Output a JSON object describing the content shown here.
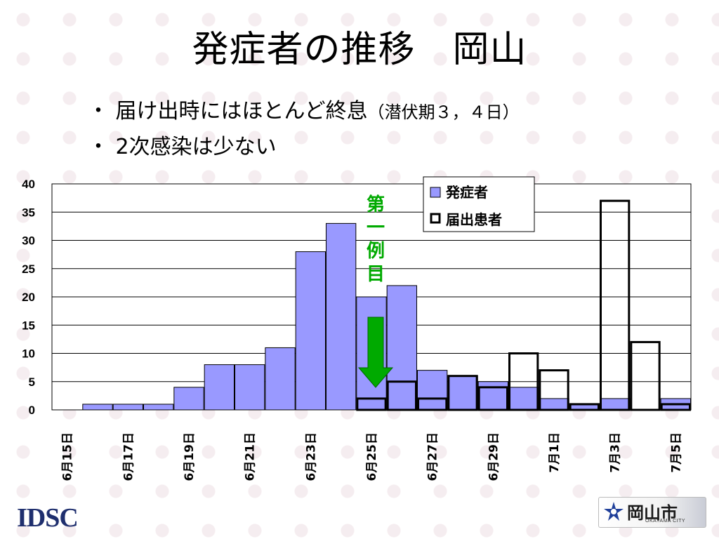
{
  "slide": {
    "title": "発症者の推移　岡山",
    "bullet1_main": "・ 届け出時にはほとんど終息",
    "bullet1_paren": "（潜伏期３，４日）",
    "bullet2": "・ 2次感染は少ない"
  },
  "logos": {
    "left": "IDSC",
    "right_name": "岡山市",
    "right_sub": "OKAYAMA CITY"
  },
  "chart_data": {
    "type": "bar",
    "ylim": [
      0,
      40
    ],
    "yticks": [
      0,
      5,
      10,
      15,
      20,
      25,
      30,
      35,
      40
    ],
    "categories": [
      "6月15日",
      "6月16日",
      "6月17日",
      "6月18日",
      "6月19日",
      "6月20日",
      "6月21日",
      "6月22日",
      "6月23日",
      "6月24日",
      "6月25日",
      "6月26日",
      "6月27日",
      "6月28日",
      "6月29日",
      "6月30日",
      "7月1日",
      "7月2日",
      "7月3日",
      "7月4日",
      "7月5日"
    ],
    "x_tick_labels": [
      "6月15日",
      "6月17日",
      "6月19日",
      "6月21日",
      "6月23日",
      "6月25日",
      "6月27日",
      "6月29日",
      "7月1日",
      "7月3日",
      "7月5日"
    ],
    "series": [
      {
        "name": "発症者",
        "color": "#9999ff",
        "values": [
          0,
          1,
          1,
          1,
          4,
          8,
          8,
          11,
          28,
          33,
          20,
          22,
          7,
          6,
          5,
          4,
          2,
          1,
          2,
          0,
          2
        ]
      },
      {
        "name": "届出患者",
        "color": "#ffffff",
        "values": [
          0,
          0,
          0,
          0,
          0,
          0,
          0,
          0,
          0,
          0,
          2,
          5,
          2,
          6,
          4,
          10,
          7,
          1,
          37,
          12,
          1
        ]
      }
    ],
    "legend_position": "top-right",
    "annotation": {
      "text": "第一例目",
      "category": "6月25日",
      "color": "#00aa00"
    },
    "grid": true
  }
}
